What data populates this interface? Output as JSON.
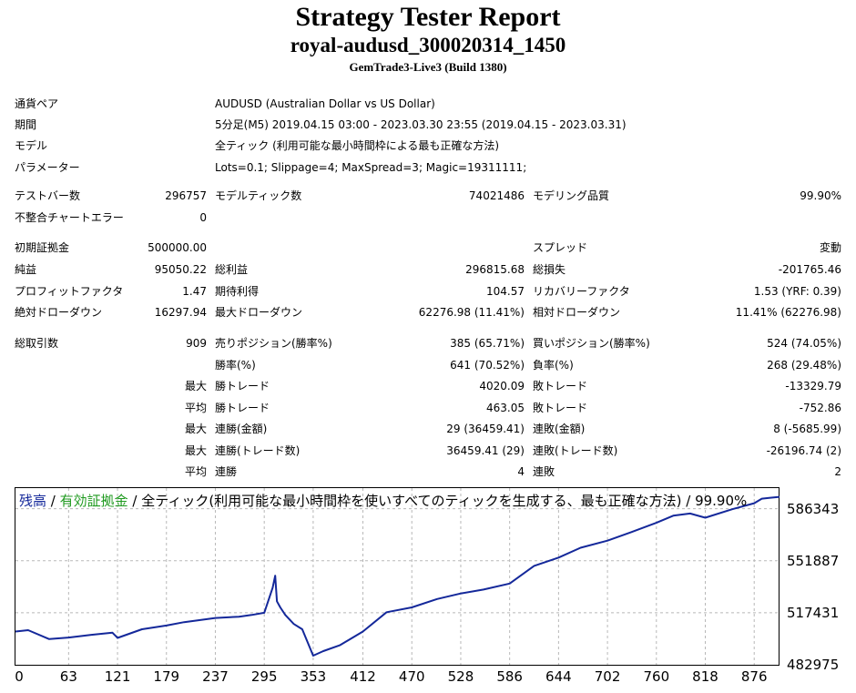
{
  "report": {
    "title": "Strategy Tester Report",
    "subtitle": "royal-audusd_300020314_1450",
    "build": "GemTrade3-Live3 (Build 1380)"
  },
  "info": [
    {
      "label": "通貨ペア",
      "value": "AUDUSD (Australian Dollar vs US Dollar)"
    },
    {
      "label": "期間",
      "value": "5分足(M5) 2019.04.15 03:00 - 2023.03.30 23:55 (2019.04.15 - 2023.03.31)"
    },
    {
      "label": "モデル",
      "value": "全ティック (利用可能な最小時間枠による最も正確な方法)"
    },
    {
      "label": "パラメーター",
      "value": "Lots=0.1; Slippage=4; MaxSpread=3; Magic=19311111;"
    }
  ],
  "stats": {
    "bars_label": "テストバー数",
    "bars": "296757",
    "ticks_label": "モデルティック数",
    "ticks": "74021486",
    "quality_label": "モデリング品質",
    "quality": "99.90%",
    "mismatch_label": "不整合チャートエラー",
    "mismatch": "0",
    "deposit_label": "初期証拠金",
    "deposit": "500000.00",
    "spread_label": "スプレッド",
    "spread": "変動",
    "net_label": "純益",
    "net": "95050.22",
    "gross_profit_label": "総利益",
    "gross_profit": "296815.68",
    "gross_loss_label": "総損失",
    "gross_loss": "-201765.46",
    "pf_label": "プロフィットファクタ",
    "pf": "1.47",
    "expected_label": "期待利得",
    "expected": "104.57",
    "recovery_label": "リカバリーファクタ",
    "recovery": "1.53 (YRF: 0.39)",
    "abs_dd_label": "絶対ドローダウン",
    "abs_dd": "16297.94",
    "max_dd_label": "最大ドローダウン",
    "max_dd": "62276.98 (11.41%)",
    "rel_dd_label": "相対ドローダウン",
    "rel_dd": "11.41% (62276.98)",
    "trades_label": "総取引数",
    "trades": "909",
    "short_label": "売りポジション(勝率%)",
    "short": "385 (65.71%)",
    "long_label": "買いポジション(勝率%)",
    "long": "524 (74.05%)",
    "win_pct_label": "勝率(%)",
    "win_pct": "641 (70.52%)",
    "loss_pct_label": "負率(%)",
    "loss_pct": "268 (29.48%)",
    "pfx_max": "最大",
    "pfx_avg": "平均",
    "lg_win_label": "勝トレード",
    "lg_win": "4020.09",
    "lg_loss_label": "敗トレード",
    "lg_loss": "-13329.79",
    "av_win_label": "勝トレード",
    "av_win": "463.05",
    "av_loss_label": "敗トレード",
    "av_loss": "-752.86",
    "mcw_label": "連勝(金額)",
    "mcw": "29 (36459.41)",
    "mcl_label": "連敗(金額)",
    "mcl": "8 (-5685.99)",
    "mcp_label": "連勝(トレード数)",
    "mcp": "36459.41 (29)",
    "mcn_label": "連敗(トレード数)",
    "mcn": "-26196.74 (2)",
    "acw_label": "連勝",
    "acw": "4",
    "acl_label": "連敗",
    "acl": "2"
  },
  "chart_legend": {
    "balance": "残高",
    "sep1": " / ",
    "equity": "有効証拠金",
    "rest": " / 全ティック(利用可能な最小時間枠を使いすべてのティックを生成する、最も正確な方法) / 99.90%"
  },
  "chart_data": {
    "type": "line",
    "xlabel": "",
    "ylabel": "",
    "xlim": [
      0,
      906
    ],
    "ylim": [
      482975,
      600000
    ],
    "x_ticks": [
      "0",
      "63",
      "121",
      "179",
      "237",
      "295",
      "353",
      "412",
      "470",
      "528",
      "586",
      "644",
      "702",
      "760",
      "818",
      "876"
    ],
    "y_ticks": [
      "586343",
      "551887",
      "517431",
      "482975"
    ],
    "grid": true,
    "colors": {
      "balance": "#14289a",
      "equity": "#1f9a1f"
    },
    "series": [
      {
        "name": "残高",
        "x": [
          0,
          15,
          40,
          63,
          90,
          115,
          121,
          150,
          179,
          200,
          237,
          265,
          280,
          295,
          305,
          308,
          310,
          314,
          320,
          330,
          340,
          353,
          365,
          385,
          412,
          440,
          470,
          500,
          528,
          555,
          586,
          615,
          644,
          670,
          702,
          730,
          760,
          780,
          800,
          818,
          850,
          876,
          885,
          895,
          906
        ],
        "y": [
          505000,
          505900,
          500000,
          501000,
          502800,
          504200,
          500800,
          506500,
          509000,
          511200,
          514000,
          514800,
          516000,
          517400,
          534000,
          542000,
          525000,
          521000,
          516000,
          510000,
          506500,
          489000,
          492000,
          496000,
          505000,
          517800,
          521000,
          526500,
          530200,
          532800,
          536800,
          548500,
          554000,
          560500,
          565200,
          570800,
          577000,
          581700,
          583200,
          580400,
          586000,
          590000,
          593000,
          593600,
          594200
        ]
      }
    ]
  }
}
